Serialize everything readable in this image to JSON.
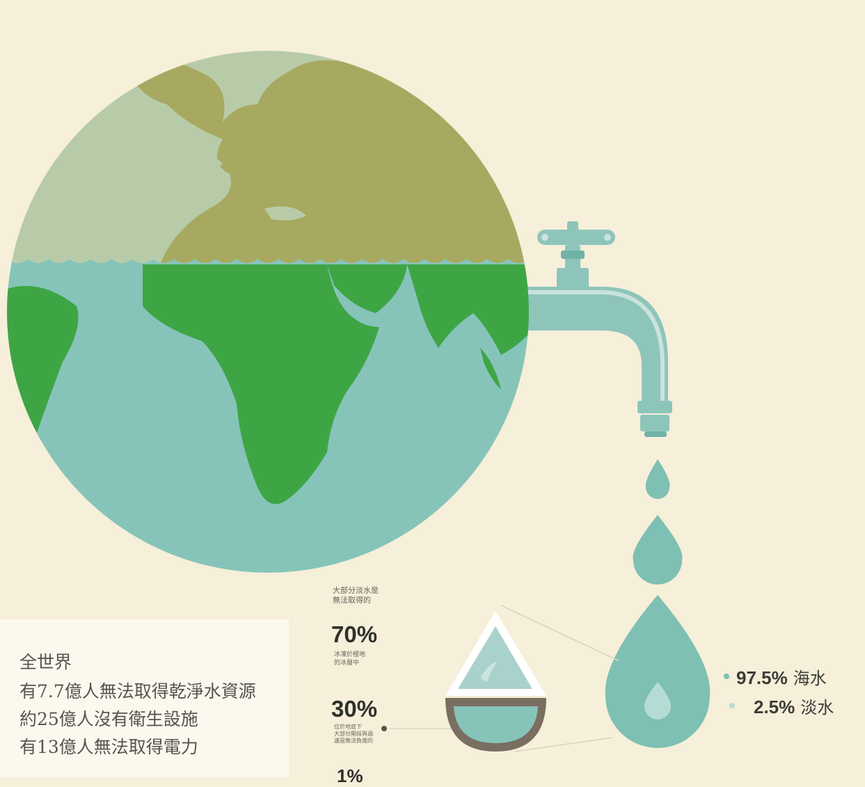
{
  "intro": {
    "line1": "全世界",
    "line2": "有7.7億人無法取得乾淨水資源",
    "line3": "約25億人沒有衛生設施",
    "line4": "有13億人無法取得電力"
  },
  "freshwater": {
    "heading_line1": "大部分淡水是",
    "heading_line2": "無法取得的",
    "ice_pct": "70%",
    "ice_desc_line1": "冰凍於極地",
    "ice_desc_line2": "的冰層中",
    "ground_pct": "30%",
    "ground_desc_line1": "位於地底下",
    "ground_desc_line2": "大部分開採與過",
    "ground_desc_line3": "濾是無法負擔的",
    "partial_pct": "1%"
  },
  "water_split": {
    "sea_value": "97.5%",
    "sea_label": "海水",
    "fresh_value": "2.5%",
    "fresh_label": "淡水"
  },
  "colors": {
    "background": "#f6efd9",
    "ocean": "#86c4b9",
    "land_south": "#3ea545",
    "land_north": "#a7a961",
    "sky_water": "#b8cba9",
    "faucet": "#8ec5bb",
    "drop": "#7ec0b3"
  }
}
